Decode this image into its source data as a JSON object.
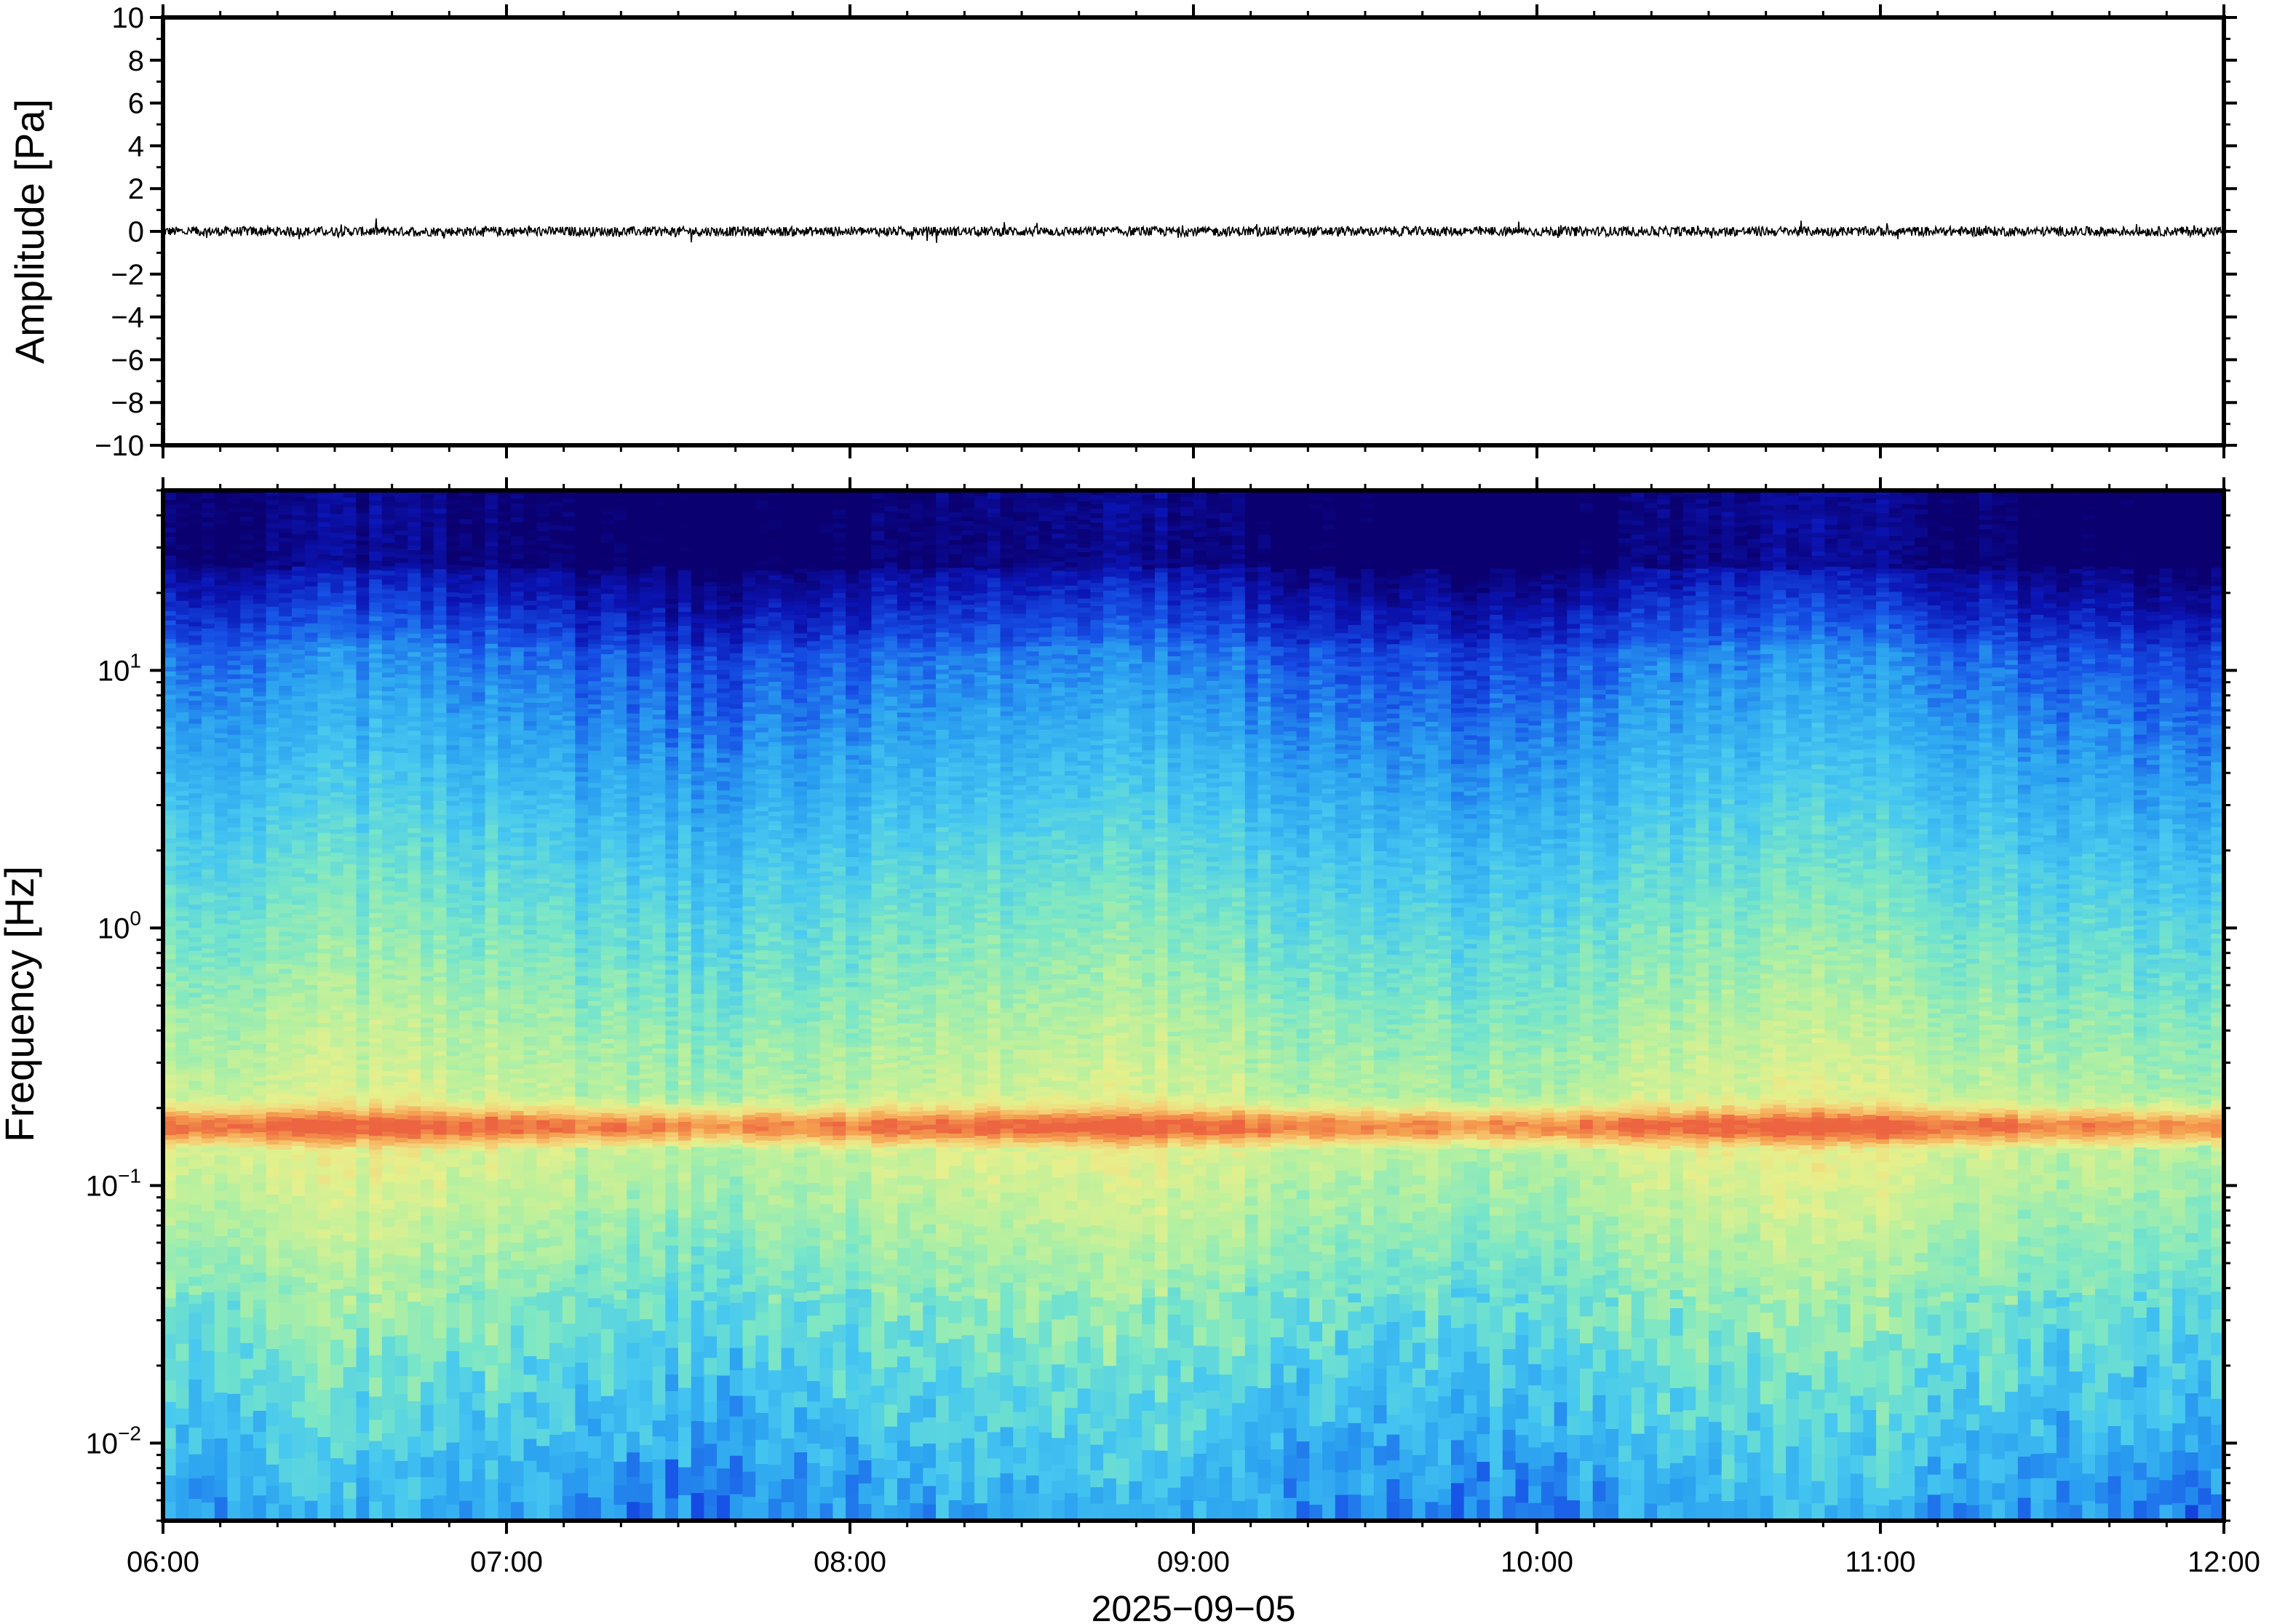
{
  "chart_data": [
    {
      "type": "line",
      "panel": "waveform",
      "ylabel": "Amplitude [Pa]",
      "ylim": [
        -10,
        10
      ],
      "yticks": [
        10,
        8,
        6,
        4,
        2,
        0,
        -2,
        -4,
        -6,
        -8,
        -10
      ],
      "ytick_labels": [
        "10",
        "8",
        "6",
        "4",
        "2",
        "0",
        "−2",
        "−4",
        "−6",
        "−8",
        "−10"
      ],
      "xlim": [
        "2025-09-05 06:00",
        "2025-09-05 12:00"
      ],
      "series": [
        {
          "values_summary": "noise around 0 Pa, peak amplitude about 0.5 Pa",
          "color": "#000000"
        }
      ]
    },
    {
      "type": "heatmap",
      "panel": "spectrogram",
      "ylabel": "Frequency [Hz]",
      "yscale": "log",
      "ylim": [
        0.005,
        50
      ],
      "ytick_labels": [
        {
          "value": 10,
          "base": "10",
          "exp": "1"
        },
        {
          "value": 1,
          "base": "10",
          "exp": "0"
        },
        {
          "value": 0.1,
          "base": "10",
          "exp": "−1"
        },
        {
          "value": 0.01,
          "base": "10",
          "exp": "−2"
        }
      ],
      "xlim": [
        "2025-09-05 06:00",
        "2025-09-05 12:00"
      ],
      "xtick_labels": [
        "06:00",
        "07:00",
        "08:00",
        "09:00",
        "10:00",
        "11:00",
        "12:00"
      ],
      "xlabel": "2025−09−05",
      "colormap": "jet",
      "colormap_stops": [
        "#0a0070",
        "#0b14b4",
        "#1650e6",
        "#2aa0f0",
        "#46c8f0",
        "#78e6c8",
        "#b4f0a0",
        "#e6f08c",
        "#f5d278",
        "#f5a050",
        "#ec6440"
      ],
      "features": {
        "microseism_peak_hz": 0.17,
        "high_frequency_cutoff_hz": 25
      }
    }
  ]
}
